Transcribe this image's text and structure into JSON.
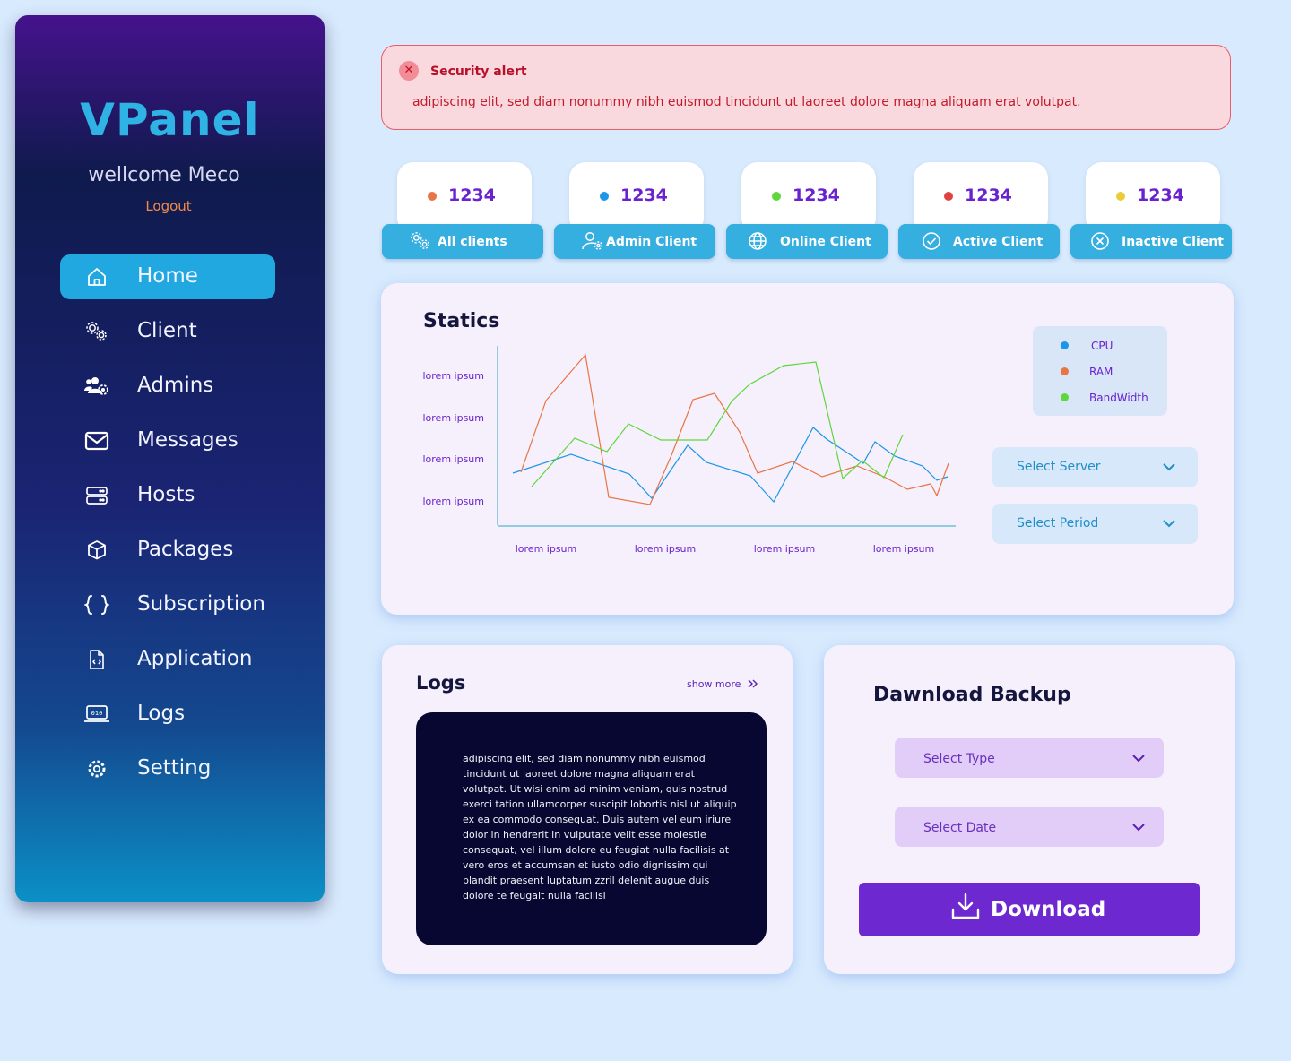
{
  "sidebar": {
    "logo": "VPanel",
    "welcome": "wellcome Meco",
    "logout": "Logout",
    "items": [
      {
        "label": "Home",
        "icon": "home-icon"
      },
      {
        "label": "Client",
        "icon": "gears-icon"
      },
      {
        "label": "Admins",
        "icon": "users-gear-icon"
      },
      {
        "label": "Messages",
        "icon": "envelope-icon"
      },
      {
        "label": "Hosts",
        "icon": "server-icon"
      },
      {
        "label": "Packages",
        "icon": "box-icon"
      },
      {
        "label": "Subscription",
        "icon": "braces-icon"
      },
      {
        "label": "Application",
        "icon": "code-file-icon"
      },
      {
        "label": "Logs",
        "icon": "laptop-binary-icon"
      },
      {
        "label": "Setting",
        "icon": "gear-icon"
      }
    ],
    "active_item": "Home"
  },
  "alert": {
    "title": "Security alert",
    "text": "adipiscing elit, sed diam nonummy nibh euismod tincidunt ut laoreet dolore magna aliquam erat volutpat."
  },
  "stats": [
    {
      "value": "1234",
      "label": "All clients",
      "dot_color": "#e87544",
      "icon": "gears-icon"
    },
    {
      "value": "1234",
      "label": "Admin Client",
      "dot_color": "#1b96e8",
      "icon": "user-gear-icon"
    },
    {
      "value": "1234",
      "label": "Online Client",
      "dot_color": "#5fd63c",
      "icon": "globe-icon"
    },
    {
      "value": "1234",
      "label": "Active Client",
      "dot_color": "#e04242",
      "icon": "check-circle-icon"
    },
    {
      "value": "1234",
      "label": "Inactive Client",
      "dot_color": "#e8cc3a",
      "icon": "x-circle-icon"
    }
  ],
  "statics": {
    "title": "Statics",
    "select_server": "Select Server",
    "select_period": "Select Period"
  },
  "chart_data": {
    "type": "line",
    "title": "Statics",
    "y_tick_labels": [
      "lorem ipsum",
      "lorem ipsum",
      "lorem ipsum",
      "lorem ipsum"
    ],
    "x_tick_labels": [
      "lorem ipsum",
      "lorem ipsum",
      "lorem ipsum",
      "lorem ipsum"
    ],
    "series": [
      {
        "name": "CPU",
        "color": "#1b96e8",
        "values": [
          58,
          79,
          57,
          30,
          89,
          70,
          55,
          26,
          109,
          96,
          69,
          93,
          77,
          66,
          50,
          54,
          74
        ]
      },
      {
        "name": "RAM",
        "color": "#e87544",
        "values": [
          59,
          139,
          190,
          31,
          23,
          78,
          140,
          147,
          104,
          58,
          71,
          54,
          66,
          54,
          40,
          46,
          33,
          69
        ]
      },
      {
        "name": "BandWidth",
        "color": "#5fd63c",
        "values": [
          43,
          97,
          82,
          113,
          95,
          95,
          95,
          138,
          157,
          178,
          182,
          52,
          72,
          53,
          101
        ]
      }
    ],
    "ylim": [
      0,
      200
    ],
    "legend_position": "top-right",
    "grid": false
  },
  "logs": {
    "title": "Logs",
    "show_more": "show more",
    "text": "adipiscing elit, sed diam nonummy nibh euismod tincidunt ut laoreet dolore magna aliquam erat volutpat. Ut wisi enim ad minim veniam, quis nostrud exerci tation ullamcorper suscipit lobortis nisl ut aliquip ex ea commodo consequat. Duis autem vel eum iriure dolor in hendrerit in vulputate velit esse molestie consequat, vel illum dolore eu feugiat nulla facilisis at vero eros et accumsan et iusto odio dignissim qui blandit praesent luptatum zzril delenit augue duis dolore te feugait nulla facilisi"
  },
  "backup": {
    "title": "Dawnload Backup",
    "select_type": "Select Type",
    "select_date": "Select Date",
    "download": "Download"
  }
}
